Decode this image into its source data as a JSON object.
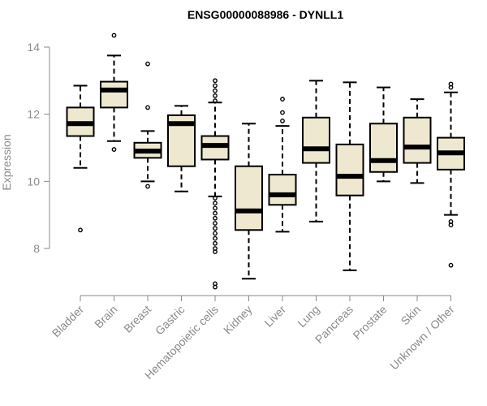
{
  "chart_data": {
    "type": "box",
    "title": "ENSG00000088986 - DYNLL1",
    "xlabel": "",
    "ylabel": "Expression",
    "ylim": [
      6.8,
      14.4
    ],
    "yticks": [
      8,
      10,
      12,
      14
    ],
    "grid": false,
    "box_fill": "#efe8d0",
    "box_stroke": "#000000",
    "axis_color": "#8a8a8a",
    "categories": [
      "Bladder",
      "Brain",
      "Breast",
      "Gastric",
      "Hematopoietic cells",
      "Kidney",
      "Liver",
      "Lung",
      "Pancreas",
      "Prostate",
      "Skin",
      "Unknown / Other"
    ],
    "series": [
      {
        "category": "Bladder",
        "min": 10.4,
        "q1": 11.35,
        "median": 11.72,
        "q3": 12.2,
        "max": 12.85,
        "outliers": [
          8.55
        ]
      },
      {
        "category": "Brain",
        "min": 11.2,
        "q1": 12.2,
        "median": 12.72,
        "q3": 12.97,
        "max": 13.75,
        "outliers": [
          14.35,
          10.95
        ]
      },
      {
        "category": "Breast",
        "min": 10.0,
        "q1": 10.7,
        "median": 10.9,
        "q3": 11.15,
        "max": 11.5,
        "outliers": [
          13.5,
          12.2,
          9.85
        ]
      },
      {
        "category": "Gastric",
        "min": 9.7,
        "q1": 10.45,
        "median": 11.72,
        "q3": 11.97,
        "max": 12.25,
        "outliers": []
      },
      {
        "category": "Hematopoietic cells",
        "min": 9.55,
        "q1": 10.65,
        "median": 11.07,
        "q3": 11.35,
        "max": 12.35,
        "outliers": [
          13.0,
          12.85,
          12.7,
          12.55,
          12.4,
          9.5,
          9.35,
          9.2,
          9.05,
          8.9,
          8.75,
          8.6,
          8.45,
          8.3,
          8.15,
          8.0,
          7.9,
          6.95,
          6.85
        ]
      },
      {
        "category": "Kidney",
        "min": 7.1,
        "q1": 8.55,
        "median": 9.12,
        "q3": 10.45,
        "max": 11.72,
        "outliers": []
      },
      {
        "category": "Liver",
        "min": 8.5,
        "q1": 9.3,
        "median": 9.6,
        "q3": 10.2,
        "max": 11.65,
        "outliers": [
          12.45,
          12.05,
          11.8
        ]
      },
      {
        "category": "Lung",
        "min": 8.8,
        "q1": 10.55,
        "median": 10.97,
        "q3": 11.9,
        "max": 13.0,
        "outliers": []
      },
      {
        "category": "Pancreas",
        "min": 7.35,
        "q1": 9.58,
        "median": 10.15,
        "q3": 11.1,
        "max": 12.95,
        "outliers": []
      },
      {
        "category": "Prostate",
        "min": 10.0,
        "q1": 10.28,
        "median": 10.62,
        "q3": 11.72,
        "max": 12.8,
        "outliers": []
      },
      {
        "category": "Skin",
        "min": 9.95,
        "q1": 10.55,
        "median": 11.02,
        "q3": 11.9,
        "max": 12.45,
        "outliers": []
      },
      {
        "category": "Unknown / Other",
        "min": 9.0,
        "q1": 10.35,
        "median": 10.85,
        "q3": 11.3,
        "max": 12.65,
        "outliers": [
          12.9,
          12.8,
          8.8,
          8.7,
          7.5
        ]
      }
    ]
  }
}
